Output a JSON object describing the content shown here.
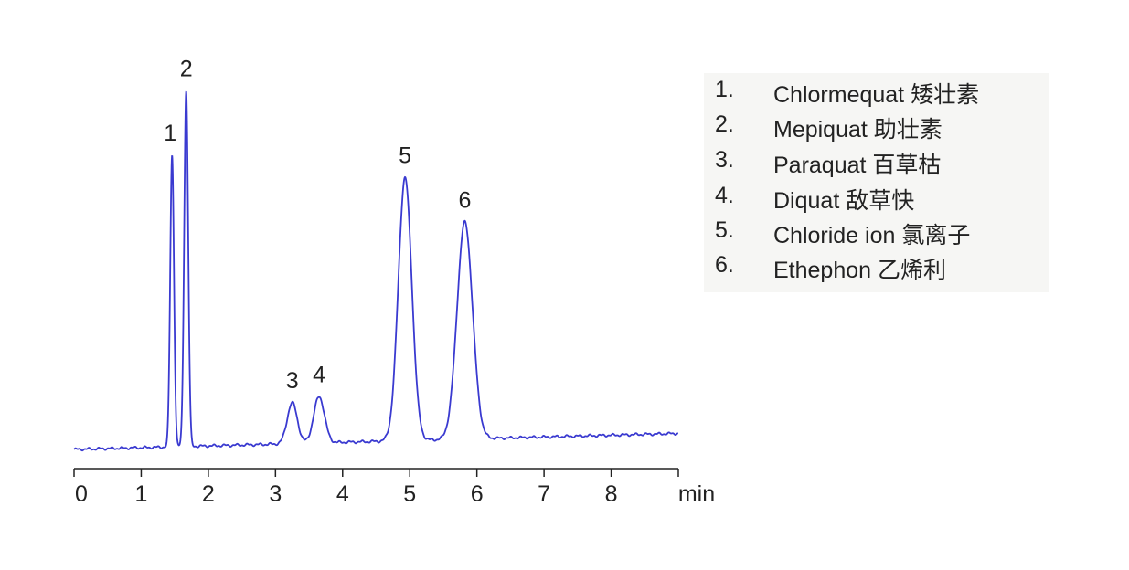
{
  "chart_data": {
    "type": "line",
    "title": "",
    "xlabel": "",
    "x_unit": "min",
    "ylabel": "",
    "xlim": [
      0,
      9
    ],
    "ylim": [
      -5.4,
      111
    ],
    "x_ticks": [
      0,
      1,
      2,
      3,
      4,
      5,
      6,
      7,
      8
    ],
    "grid": false,
    "line_color": "#3a3ad0",
    "baseline": {
      "start": 0,
      "end": 4.5
    },
    "peaks": [
      {
        "label": "1",
        "rt": 1.46,
        "height": 82,
        "width": 0.028
      },
      {
        "label": "2",
        "rt": 1.67,
        "height": 100,
        "width": 0.03
      },
      {
        "label": "3",
        "rt": 3.25,
        "height": 11.5,
        "width": 0.075
      },
      {
        "label": "4",
        "rt": 3.65,
        "height": 13,
        "width": 0.08
      },
      {
        "label": "5",
        "rt": 4.93,
        "height": 74,
        "width": 0.1
      },
      {
        "label": "6",
        "rt": 5.82,
        "height": 61,
        "width": 0.115
      }
    ],
    "legend_position": "right",
    "legend": [
      {
        "num": "1.",
        "name": "Chlormequat  矮壮素"
      },
      {
        "num": "2.",
        "name": "Mepiquat  助壮素"
      },
      {
        "num": "3.",
        "name": "Paraquat  百草枯"
      },
      {
        "num": "4.",
        "name": "Diquat 敌草快"
      },
      {
        "num": "5.",
        "name": "Chloride ion 氯离子"
      },
      {
        "num": "6.",
        "name": "Ethephon 乙烯利"
      }
    ]
  }
}
